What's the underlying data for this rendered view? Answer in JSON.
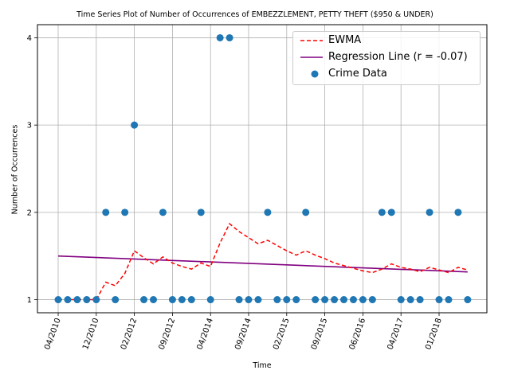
{
  "chart_data": {
    "type": "scatter",
    "title": "Time Series Plot of Number of Occurrences of EMBEZZLEMENT, PETTY THEFT ($950 & UNDER)",
    "xlabel": "Time",
    "ylabel": "Number of Occurrences",
    "x_tick_labels": [
      "04/2010",
      "12/2010",
      "02/2012",
      "09/2012",
      "04/2014",
      "09/2014",
      "02/2015",
      "09/2015",
      "06/2016",
      "04/2017",
      "01/2018"
    ],
    "y_tick_labels": [
      "1",
      "2",
      "3",
      "4"
    ],
    "ylim": [
      0.85,
      4.15
    ],
    "grid": true,
    "legend_position": "top-right",
    "series": [
      {
        "name": "Crime Data",
        "kind": "scatter",
        "color": "#1f77b4",
        "values": [
          1,
          1,
          1,
          1,
          1,
          2,
          1,
          2,
          3,
          1,
          1,
          2,
          1,
          1,
          1,
          2,
          1,
          4,
          4,
          1,
          1,
          1,
          2,
          1,
          1,
          1,
          2,
          1,
          1,
          1,
          1,
          1,
          1,
          1,
          2,
          2,
          1,
          1,
          1,
          2,
          1,
          1,
          2,
          1
        ]
      },
      {
        "name": "EWMA",
        "kind": "line",
        "color": "#ff0000",
        "dashed": true,
        "values": [
          1,
          1,
          1,
          1,
          1,
          1.2,
          1.16,
          1.3,
          1.56,
          1.48,
          1.41,
          1.49,
          1.42,
          1.38,
          1.35,
          1.42,
          1.38,
          1.65,
          1.87,
          1.78,
          1.71,
          1.64,
          1.68,
          1.62,
          1.56,
          1.51,
          1.56,
          1.51,
          1.47,
          1.42,
          1.39,
          1.36,
          1.33,
          1.31,
          1.35,
          1.41,
          1.37,
          1.35,
          1.32,
          1.37,
          1.34,
          1.31,
          1.37,
          1.34
        ]
      },
      {
        "name": "Regression Line (r = -0.07)",
        "kind": "line",
        "color": "#800080",
        "values": [
          1.5,
          1.318
        ]
      }
    ]
  }
}
